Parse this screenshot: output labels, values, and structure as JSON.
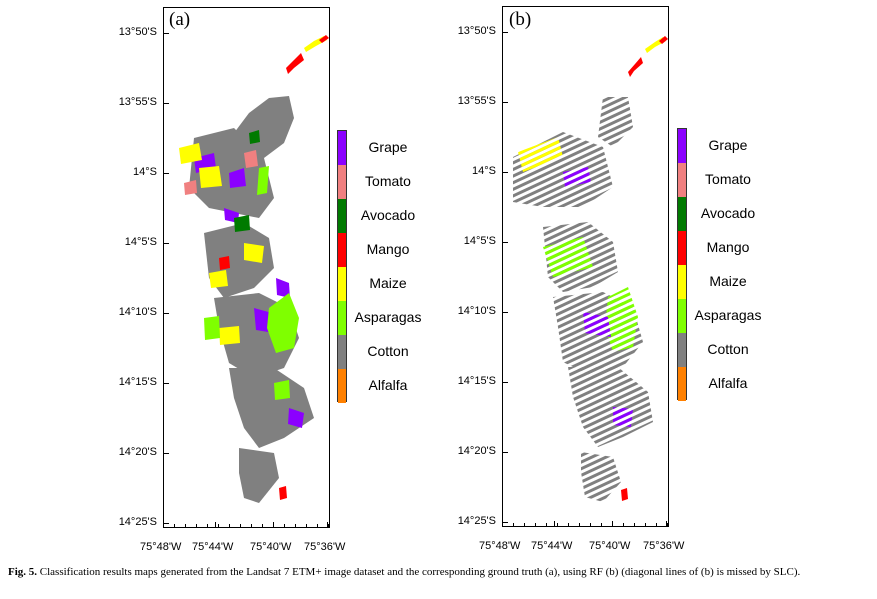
{
  "panels": [
    {
      "label": "(a)"
    },
    {
      "label": "(b)"
    }
  ],
  "y_ticks": [
    "13°50'S",
    "13°55'S",
    "14°S",
    "14°5'S",
    "14°10'S",
    "14°15'S",
    "14°20'S",
    "14°25'S"
  ],
  "x_ticks": [
    "75°48'W",
    "75°44'W",
    "75°40'W",
    "75°36'W"
  ],
  "legend": [
    {
      "label": "Grape",
      "color": "#8b00ff"
    },
    {
      "label": "Tomato",
      "color": "#f08080"
    },
    {
      "label": "Avocado",
      "color": "#007a00"
    },
    {
      "label": "Mango",
      "color": "#ff0000"
    },
    {
      "label": "Maize",
      "color": "#ffff00"
    },
    {
      "label": "Asparagas",
      "color": "#7fff00"
    },
    {
      "label": "Cotton",
      "color": "#808080"
    },
    {
      "label": "Alfalfa",
      "color": "#ff8000"
    }
  ],
  "caption": {
    "fig": "Fig. 5.",
    "text": "Classification results maps generated from the Landsat 7 ETM+ image dataset and the corresponding ground truth (a), using RF (b) (diagonal lines of (b) is missed by SLC)."
  }
}
